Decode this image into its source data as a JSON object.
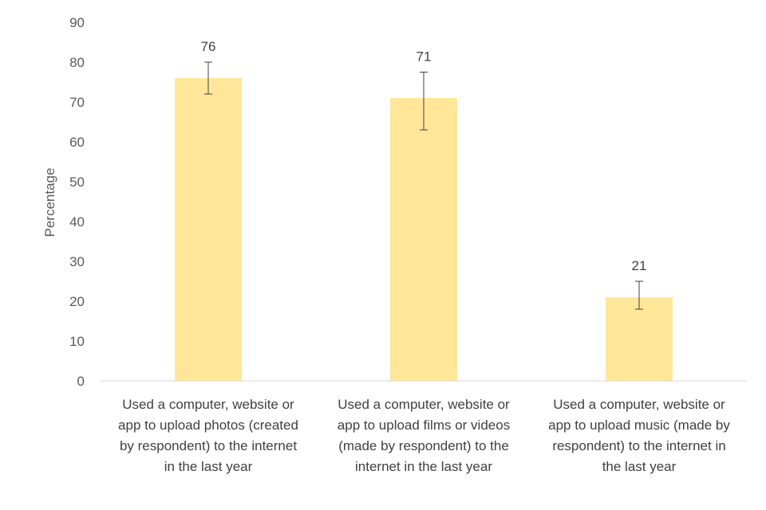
{
  "chart_data": {
    "type": "bar",
    "categories": [
      "Used a computer, website or app to upload photos (created by respondent) to the internet in the last year",
      "Used a computer, website or app to upload films or videos (made by respondent) to the internet in the last year",
      "Used a computer, website or app to upload music (made by respondent) to the internet in the last year"
    ],
    "category_lines": [
      [
        "Used a computer, website or",
        "app to upload photos (created",
        "by respondent) to the internet",
        "in the last year"
      ],
      [
        "Used a computer, website or",
        "app to upload films or videos",
        "(made by respondent) to the",
        "internet in the last year"
      ],
      [
        "Used a computer, website or",
        "app to upload music (made by",
        "respondent) to the internet in",
        "the last year"
      ]
    ],
    "values": [
      76,
      71,
      21
    ],
    "value_labels": [
      "76",
      "71",
      "21"
    ],
    "error_bars": [
      {
        "low": 72,
        "high": 80
      },
      {
        "low": 63,
        "high": 77.5
      },
      {
        "low": 18,
        "high": 25
      }
    ],
    "ylabel": "Percentage",
    "xlabel": "",
    "ylim": [
      0,
      90
    ],
    "yticks": [
      0,
      10,
      20,
      30,
      40,
      50,
      60,
      70,
      80,
      90
    ],
    "grid": false,
    "legend": "none",
    "colors": {
      "bar": "#FFE699",
      "axis": "#D9D9D9",
      "error_bar": "#404040"
    }
  }
}
